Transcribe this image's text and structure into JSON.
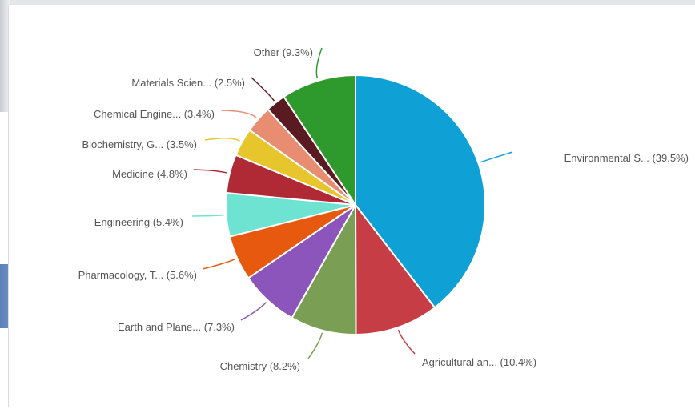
{
  "chart_data": {
    "type": "pie",
    "title": "",
    "slices": [
      {
        "label": "Environmental S... (39.5%)",
        "value": 39.5,
        "color": "#0fa0d6"
      },
      {
        "label": "Agricultural an... (10.4%)",
        "value": 10.4,
        "color": "#c73d45"
      },
      {
        "label": "Chemistry (8.2%)",
        "value": 8.2,
        "color": "#7a9e53"
      },
      {
        "label": "Earth and Plane... (7.3%)",
        "value": 7.3,
        "color": "#8b55bb"
      },
      {
        "label": "Pharmacology, T... (5.6%)",
        "value": 5.6,
        "color": "#e6590f"
      },
      {
        "label": "Engineering (5.4%)",
        "value": 5.4,
        "color": "#6fe3d2"
      },
      {
        "label": "Medicine (4.8%)",
        "value": 4.8,
        "color": "#b02a35"
      },
      {
        "label": "Biochemistry, G... (3.5%)",
        "value": 3.5,
        "color": "#e7c52c"
      },
      {
        "label": "Chemical Engine... (3.4%)",
        "value": 3.4,
        "color": "#e98d72"
      },
      {
        "label": "Materials Scien... (2.5%)",
        "value": 2.5,
        "color": "#5a1a22"
      },
      {
        "label": "Other (9.3%)",
        "value": 9.3,
        "color": "#2e9a2e"
      }
    ],
    "start_angle_deg": 0,
    "direction": "clockwise",
    "legend": "none",
    "labels": "outside-with-leader-lines"
  }
}
